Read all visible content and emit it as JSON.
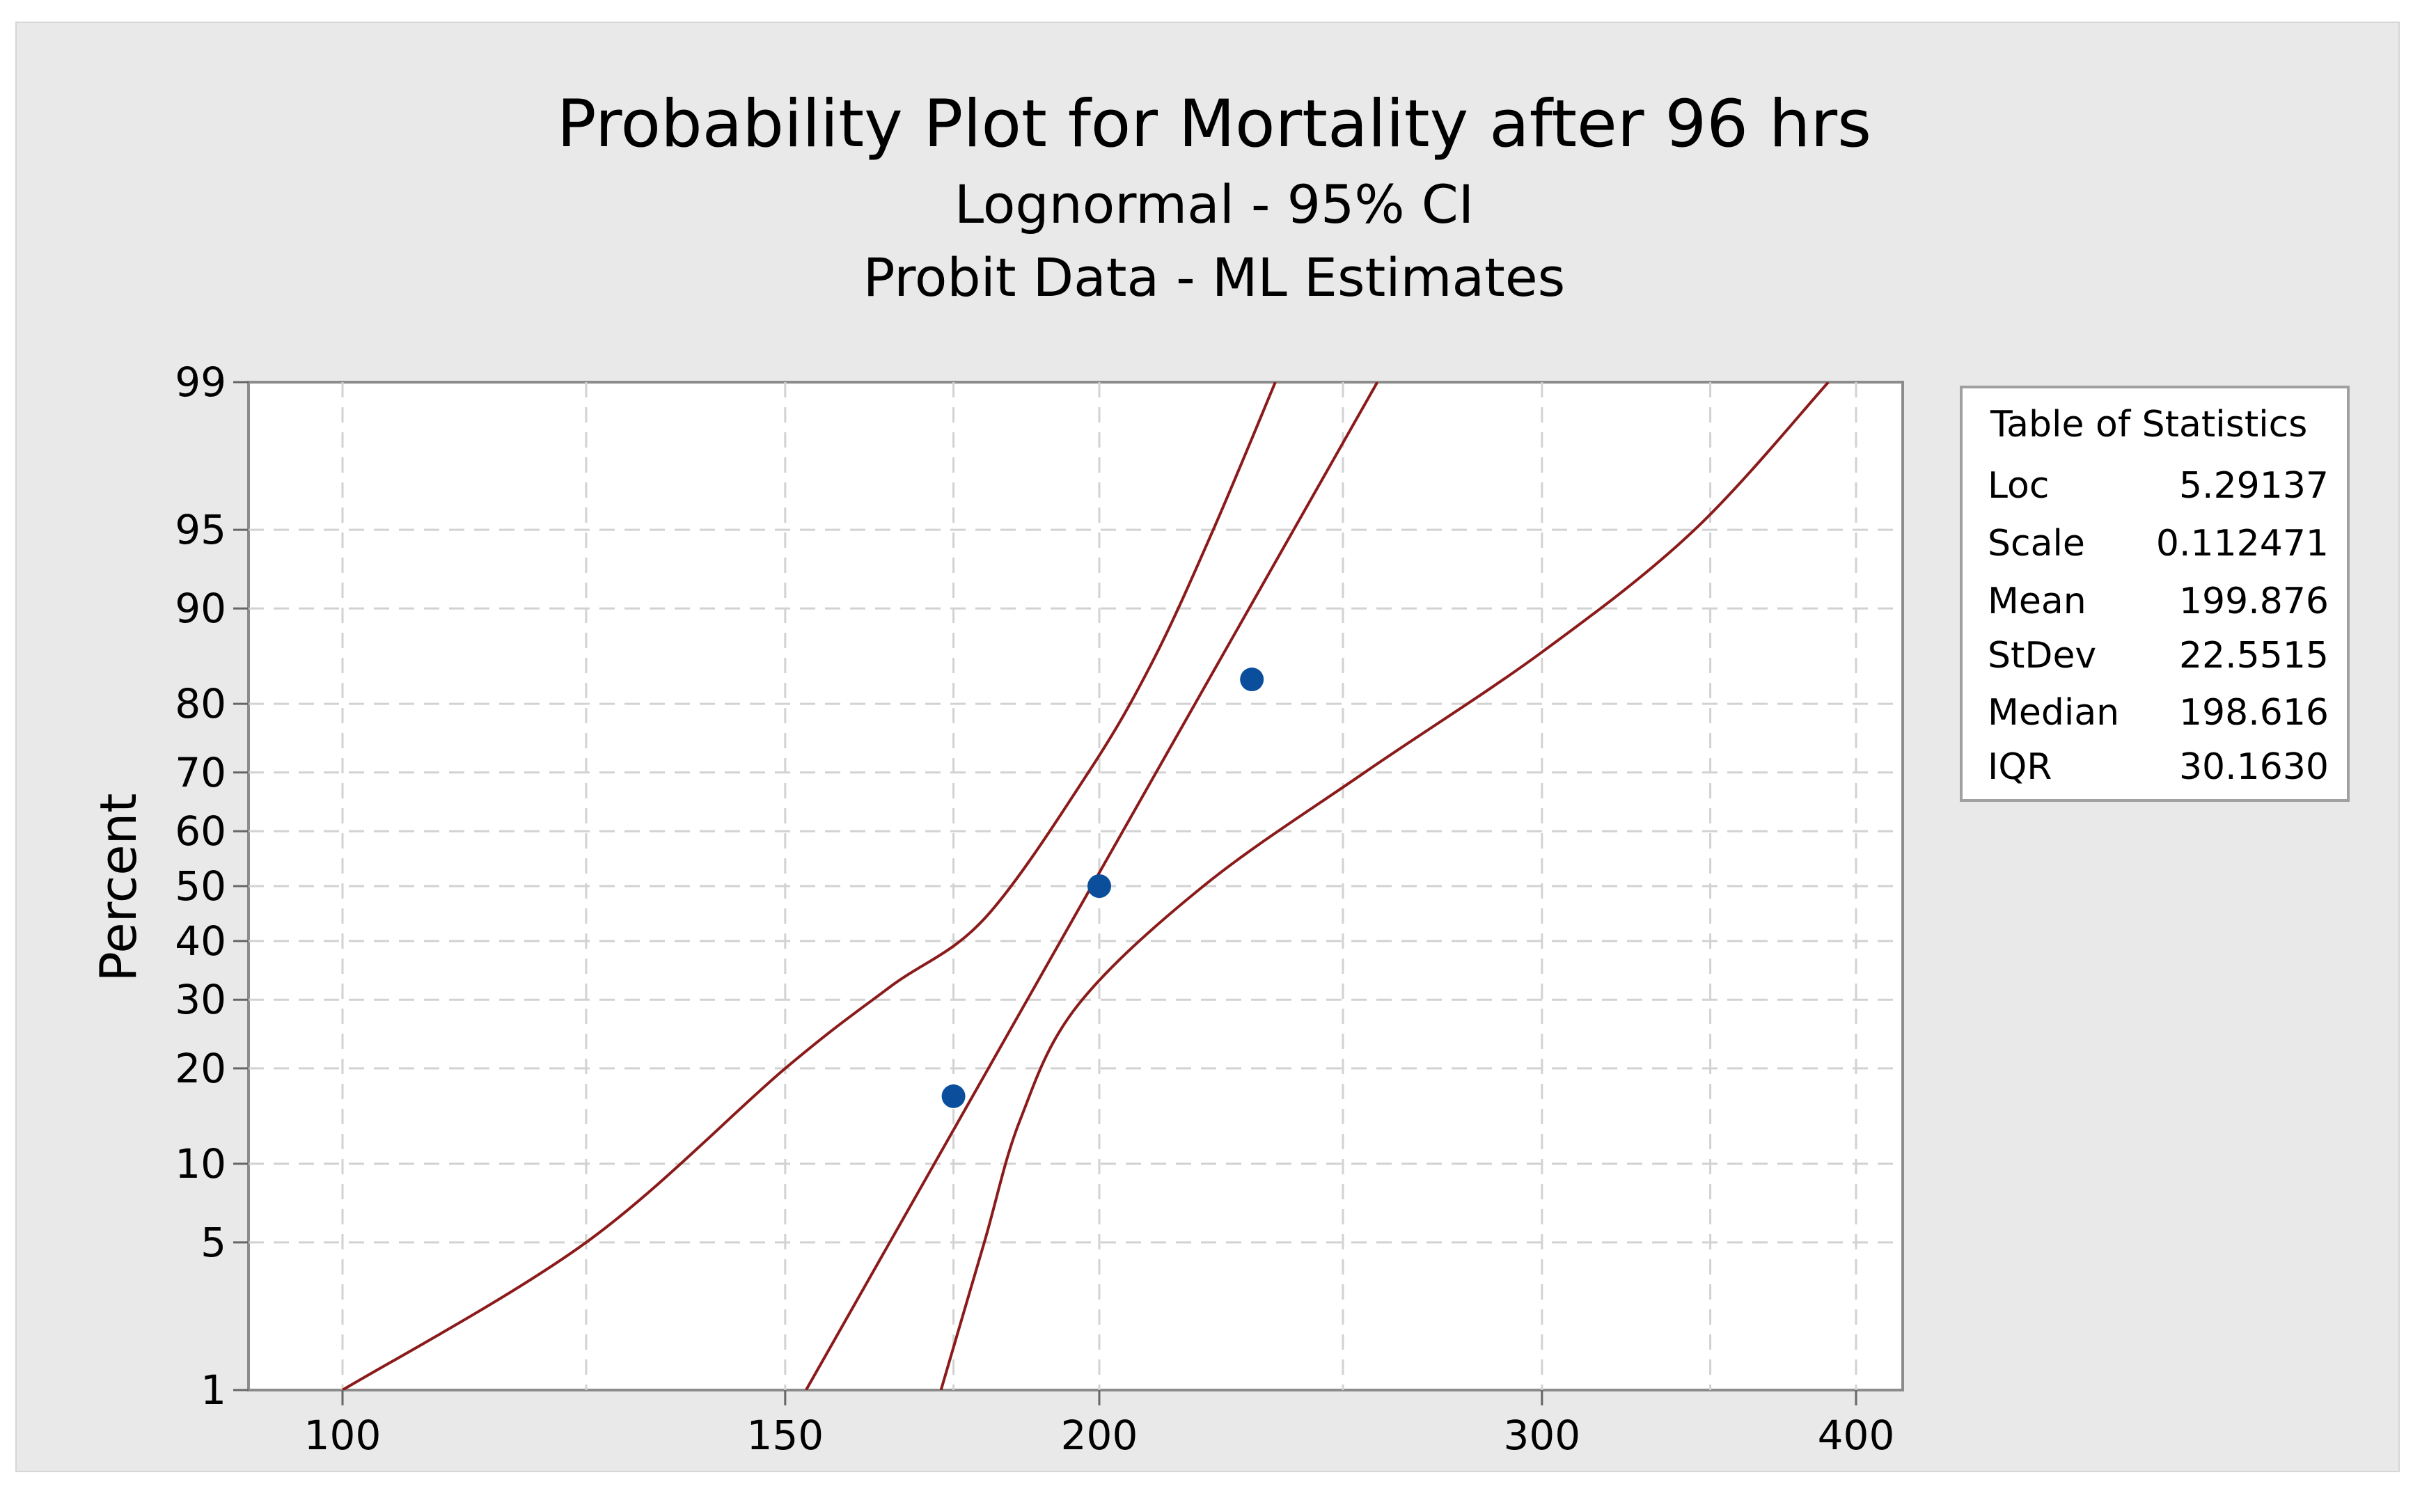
{
  "chart_data": {
    "type": "scatter",
    "title": "Probability Plot for Mortality after 96 hrs",
    "subtitle_lines": [
      "Lognormal - 95% CI",
      "Probit Data - ML Estimates"
    ],
    "ylabel": "Percent",
    "xlabel": "",
    "x_scale": "log",
    "y_scale": "probability",
    "xlim": [
      90,
      420
    ],
    "ylim": [
      1,
      99
    ],
    "x_ticks": [
      100,
      150,
      200,
      300,
      400
    ],
    "y_ticks": [
      1,
      5,
      10,
      20,
      30,
      40,
      50,
      60,
      70,
      80,
      90,
      95,
      99
    ],
    "grid": true,
    "points": [
      {
        "x": 175,
        "y": 16.6
      },
      {
        "x": 200,
        "y": 50
      },
      {
        "x": 230,
        "y": 83
      }
    ],
    "fit_line": {
      "loc": 5.29137,
      "scale": 0.112471
    },
    "ci_lower": [
      {
        "x": 173,
        "y": 1
      },
      {
        "x": 180,
        "y": 5
      },
      {
        "x": 186,
        "y": 14
      },
      {
        "x": 196,
        "y": 29
      },
      {
        "x": 220,
        "y": 50
      },
      {
        "x": 255,
        "y": 70
      },
      {
        "x": 300,
        "y": 86
      },
      {
        "x": 345,
        "y": 95
      },
      {
        "x": 390,
        "y": 99
      }
    ],
    "ci_upper": [
      {
        "x": 100,
        "y": 1
      },
      {
        "x": 125,
        "y": 5
      },
      {
        "x": 150,
        "y": 20
      },
      {
        "x": 165,
        "y": 32
      },
      {
        "x": 180,
        "y": 44
      },
      {
        "x": 198,
        "y": 70
      },
      {
        "x": 210,
        "y": 85
      },
      {
        "x": 222,
        "y": 95
      },
      {
        "x": 235,
        "y": 99
      }
    ],
    "colors": {
      "points": "#0b4f9c",
      "fit_line": "#8b1a1a",
      "ci_lines": "#8b1a1a",
      "grid": "#d2d2d2",
      "plot_bg": "#ffffff",
      "frame_bg": "#e9e9e9"
    }
  },
  "stats_table": {
    "title": "Table of Statistics",
    "rows": [
      {
        "name": "Loc",
        "value": "5.29137"
      },
      {
        "name": "Scale",
        "value": "0.112471"
      },
      {
        "name": "Mean",
        "value": "199.876"
      },
      {
        "name": "StDev",
        "value": "22.5515"
      },
      {
        "name": "Median",
        "value": "198.616"
      },
      {
        "name": "IQR",
        "value": "30.1630"
      }
    ]
  }
}
